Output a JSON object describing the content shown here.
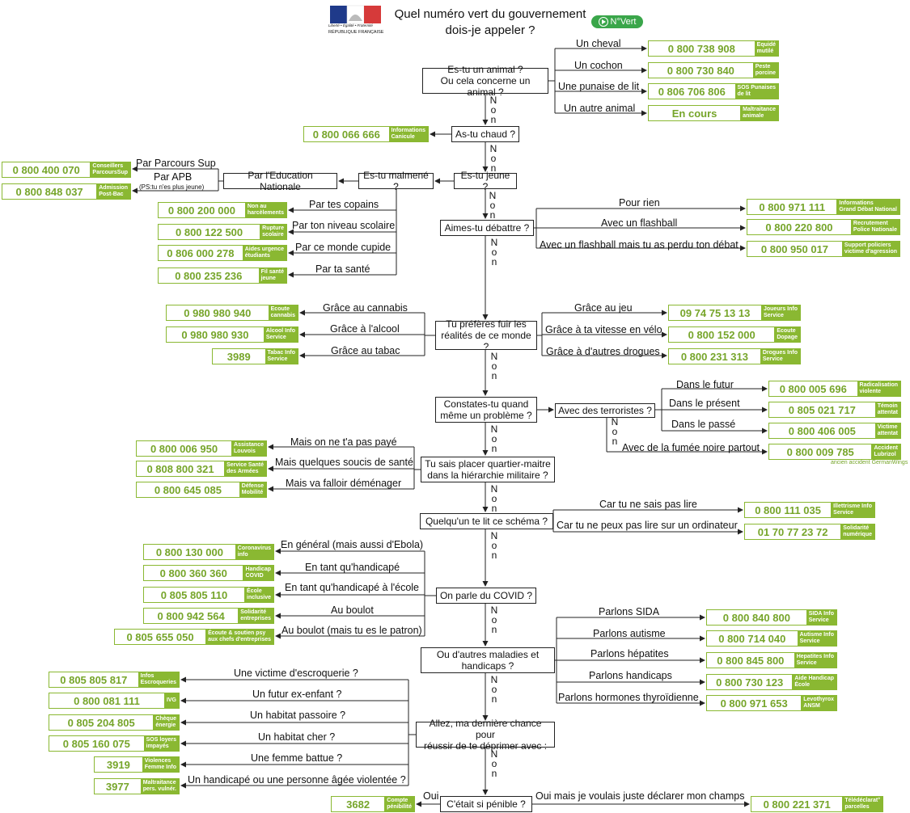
{
  "header": {
    "title_line1": "Quel numéro vert du gouvernement",
    "title_line2": "dois-je appeler ?",
    "logo_text1": "Liberté • Égalité • Fraternité",
    "logo_text2": "RÉPUBLIQUE FRANÇAISE",
    "badge": "N°Vert"
  },
  "non": "Non",
  "q": {
    "animal": "Es-tu un animal ?\nOu cela concerne un animal ?",
    "chaud": "As-tu chaud ?",
    "jeune": "Es-tu jeune ?",
    "malmene": "Es-tu malmené ?",
    "educ": "Par l'Education Nationale",
    "debattre": "Aimes-tu débattre ?",
    "fuir": "Tu préfères fuir les\nréalités de ce monde ?",
    "probleme": "Constates-tu quand\nmême un problème ?",
    "terroristes": "Avec des terroristes ?",
    "militaire": "Tu sais placer quartier-maitre\ndans la hiérarchie militaire ?",
    "lit": "Quelqu'un te lit ce schéma ?",
    "covid": "On parle du COVID ?",
    "maladies": "Ou d'autres maladies et\nhandicaps ?",
    "chance": "Allez, ma dernière chance pour\nréussir de te déprimer avec :",
    "penible": "C'était si pénible ?"
  },
  "labels": {
    "cheval": "Un cheval",
    "cochon": "Un cochon",
    "punaise": "Une punaise de lit",
    "autre_animal": "Un autre animal",
    "parcoursup": "Par Parcours Sup",
    "apb": "Par APB",
    "apb_note": "(PS:tu n'es plus jeune)",
    "copains": "Par tes copains",
    "niveau": "Par ton niveau scolaire",
    "cupide": "Par ce monde cupide",
    "sante": "Par ta santé",
    "pour_rien": "Pour rien",
    "flashball": "Avec un flashball",
    "flashball2": "Avec un flashball mais tu as perdu ton débat",
    "cannabis": "Grâce au cannabis",
    "alcool": "Grâce à l'alcool",
    "tabac": "Grâce au tabac",
    "jeu": "Grâce au jeu",
    "vitesse": "Grâce à ta vitesse en vélo",
    "drogues": "Grâce à d'autres drogues",
    "futur": "Dans le futur",
    "present": "Dans le présent",
    "passe": "Dans le passé",
    "fumee": "Avec de la fumée noire partout",
    "pas_paye": "Mais on ne t'a pas payé",
    "soucis": "Mais quelques soucis de santé",
    "demenager": "Mais va falloir déménager",
    "sais_pas": "Car tu ne sais pas lire",
    "ordinateur": "Car tu ne peux pas lire sur un ordinateur",
    "general": "En général (mais aussi d'Ebola)",
    "handicape": "En tant qu'handicapé",
    "handicape_ecole": "En tant qu'handicapé à l'école",
    "boulot": "Au boulot",
    "patron": "Au boulot (mais tu es le patron)",
    "sida": "Parlons SIDA",
    "autisme": "Parlons autisme",
    "hepatites": "Parlons hépatites",
    "handicaps": "Parlons handicaps",
    "thyroide": "Parlons hormones thyroïdienne",
    "escroquerie": "Une victime d'escroquerie ?",
    "ex_enfant": "Un futur ex-enfant ?",
    "passoire": "Un habitat passoire ?",
    "cher": "Un habitat cher ?",
    "battue": "Une femme battue ?",
    "violentee": "Un handicapé ou une personne âgée violentée ?",
    "oui": "Oui",
    "oui_champs": "Oui mais je voulais juste déclarer mon champs"
  },
  "note": "ancien accident GermanWings",
  "numbers": {
    "equide": {
      "n": "0 800 738 908",
      "t": "Equidé\nmutilé"
    },
    "peste": {
      "n": "0 800 730 840",
      "t": "Peste\nporcine"
    },
    "punaises": {
      "n": "0 806 706 806",
      "t": "SOS Punaises\nde lit"
    },
    "encours": {
      "n": "En cours",
      "t": "Maltraitance\nanimale"
    },
    "canicule": {
      "n": "0 800 066 666",
      "t": "Informations\nCanicule"
    },
    "parcoursup": {
      "n": "0 800 400 070",
      "t": "Conseillers\nParcoursSup"
    },
    "postbac": {
      "n": "0 800 848 037",
      "t": "Admission\nPost-Bac"
    },
    "harcelement": {
      "n": "0 800 200 000",
      "t": "Non au\nharcèlements"
    },
    "rupture": {
      "n": "0 800 122 500",
      "t": "Rupture\nscolaire"
    },
    "urgence": {
      "n": "0 806 000 278",
      "t": "Aides urgence\nétudiants"
    },
    "filsante": {
      "n": "0 800 235 236",
      "t": "Fil santé\njeune"
    },
    "debat": {
      "n": "0 800 971 111",
      "t": "Informations\nGrand Débat National"
    },
    "police": {
      "n": "0 800 220 800",
      "t": "Recrutement\nPolice Nationale"
    },
    "agression": {
      "n": "0 800 950 017",
      "t": "Support policiers\nvictime d'agression"
    },
    "cannabis": {
      "n": "0 980 980 940",
      "t": "Ecoute\ncannabis"
    },
    "alcool": {
      "n": "0 980 980 930",
      "t": "Alcool Info\nService"
    },
    "tabac": {
      "n": "3989",
      "t": "Tabac Info\nService"
    },
    "joueurs": {
      "n": "09 74 75 13 13",
      "t": "Joueurs Info\nService"
    },
    "dopage": {
      "n": "0 800 152 000",
      "t": "Ecoute\nDopage"
    },
    "drogues": {
      "n": "0 800 231 313",
      "t": "Drogues Info\nService"
    },
    "radicalisation": {
      "n": "0 800 005 696",
      "t": "Radicalisation\nviolente"
    },
    "temoin": {
      "n": "0 805 021 717",
      "t": "Témoin\nattentat"
    },
    "victime": {
      "n": "0 800 406 005",
      "t": "Victime\nattentat"
    },
    "lubrizol": {
      "n": "0 800 009 785",
      "t": "Accident\nLubrizol"
    },
    "louvois": {
      "n": "0 800 006 950",
      "t": "Assistance\nLouvois"
    },
    "armees": {
      "n": "0 808 800 321",
      "t": "Service Santé\ndes Armées"
    },
    "mobilite": {
      "n": "0 800 645 085",
      "t": "Défense\nMobilité"
    },
    "illettrisme": {
      "n": "0 800 111 035",
      "t": "Illettrisme Info\nService"
    },
    "numerique": {
      "n": "01 70 77 23 72",
      "t": "Solidarité\nnumérique"
    },
    "coronavirus": {
      "n": "0 800 130 000",
      "t": "Coronavirus\ninfo"
    },
    "handicap_covid": {
      "n": "0 800 360 360",
      "t": "Handicap\nCOVID"
    },
    "ecole": {
      "n": "0 805 805 110",
      "t": "École\ninclusive"
    },
    "entreprises": {
      "n": "0 800 942 564",
      "t": "Solidarité\nentreprises"
    },
    "psy": {
      "n": "0 805 655 050",
      "t": "Écoute & soutien psy\naux chefs d'entreprises"
    },
    "sida": {
      "n": "0 800 840 800",
      "t": "SIDA Info\nService"
    },
    "autisme": {
      "n": "0 800 714 040",
      "t": "Autisme Info\nService"
    },
    "hepatites": {
      "n": "0 800 845 800",
      "t": "Hepatites Info\nService"
    },
    "handicap_ecole": {
      "n": "0 800 730 123",
      "t": "Aide Handicap\nÉcole"
    },
    "levothyrox": {
      "n": "0 800 971 653",
      "t": "Levothyrox\nANSM"
    },
    "escroqueries": {
      "n": "0 805 805 817",
      "t": "Infos\nEscroqueries"
    },
    "ivg": {
      "n": "0 800 081 111",
      "t": "IVG"
    },
    "cheque": {
      "n": "0 805 204 805",
      "t": "Chèque\nénergie"
    },
    "loyers": {
      "n": "0 805 160 075",
      "t": "SOS loyers\nimpayés"
    },
    "violences": {
      "n": "3919",
      "t": "Violences\nFemme Info"
    },
    "maltraitance": {
      "n": "3977",
      "t": "Maltraitance\npers. vulnér."
    },
    "penibilite": {
      "n": "3682",
      "t": "Compte\npénibilité"
    },
    "teledeclarat": {
      "n": "0 800 221 371",
      "t": "Télédéclarat°\nparcelles"
    }
  }
}
